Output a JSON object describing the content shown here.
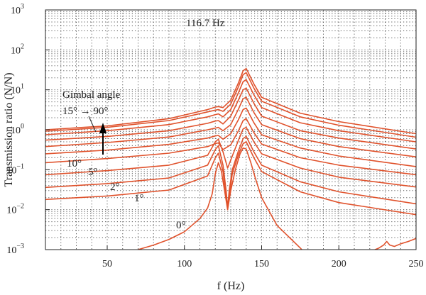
{
  "chart_data": {
    "type": "line",
    "title": "",
    "xlabel": "f (Hz)",
    "ylabel": "Transmission ratio (N/N)",
    "xlim": [
      10,
      250
    ],
    "ylog": true,
    "ylim_exp": [
      -3,
      3
    ],
    "xticks": [
      "50",
      "100",
      "150",
      "200",
      "250"
    ],
    "yticks": [
      {
        "base": "10",
        "exp": "3"
      },
      {
        "base": "10",
        "exp": "2"
      },
      {
        "base": "10",
        "exp": "1"
      },
      {
        "base": "10",
        "exp": "0"
      },
      {
        "base": "10",
        "exp": "−1"
      },
      {
        "base": "10",
        "exp": "−2"
      },
      {
        "base": "10",
        "exp": "−3"
      }
    ],
    "grid": "dotted",
    "line_color": "#e0522c",
    "annotations": {
      "freq_label": "116.7 Hz",
      "gimbal_title": "Gimbal angle",
      "gimbal_range": "15° → 90°",
      "curve_labels": [
        "10°",
        "5°",
        "2°",
        "1°",
        "0°"
      ]
    },
    "series": [
      {
        "x": [
          10,
          50,
          90,
          115,
          120,
          122,
          125,
          130,
          135,
          138,
          140,
          145,
          150,
          175,
          200,
          250
        ],
        "y": [
          1.0,
          1.25,
          1.9,
          3.2,
          3.7,
          3.8,
          3.6,
          5.5,
          15,
          30,
          34,
          14,
          6.5,
          2.6,
          1.6,
          0.8
        ]
      },
      {
        "x": [
          10,
          50,
          90,
          115,
          120,
          122,
          125,
          130,
          135,
          138,
          140,
          145,
          150,
          175,
          200,
          250
        ],
        "y": [
          0.92,
          1.15,
          1.7,
          2.8,
          3.1,
          3.2,
          2.9,
          4.4,
          12,
          24,
          27,
          11,
          5.2,
          2.1,
          1.3,
          0.65
        ]
      },
      {
        "x": [
          10,
          50,
          90,
          115,
          120,
          122,
          125,
          130,
          135,
          138,
          140,
          145,
          150,
          175,
          200,
          250
        ],
        "y": [
          0.75,
          0.95,
          1.35,
          2.1,
          2.4,
          2.5,
          2.1,
          3.2,
          8.5,
          16,
          18,
          7.5,
          3.6,
          1.5,
          0.95,
          0.5
        ]
      },
      {
        "x": [
          10,
          50,
          90,
          115,
          120,
          122,
          125,
          130,
          135,
          138,
          140,
          145,
          150,
          175,
          200,
          250
        ],
        "y": [
          0.55,
          0.68,
          0.95,
          1.45,
          1.65,
          1.7,
          1.4,
          2.2,
          5.6,
          10,
          11,
          4.6,
          2.2,
          0.95,
          0.62,
          0.33
        ]
      },
      {
        "x": [
          10,
          50,
          90,
          115,
          120,
          122,
          125,
          130,
          135,
          138,
          140,
          145,
          150,
          175,
          200,
          250
        ],
        "y": [
          0.38,
          0.48,
          0.66,
          1.0,
          1.1,
          1.15,
          0.95,
          1.35,
          3.3,
          6.0,
          6.5,
          2.7,
          1.35,
          0.6,
          0.38,
          0.21
        ]
      },
      {
        "x": [
          10,
          50,
          90,
          115,
          120,
          122,
          125,
          130,
          135,
          138,
          140,
          145,
          150,
          175,
          200,
          250
        ],
        "y": [
          0.25,
          0.31,
          0.43,
          0.62,
          0.7,
          0.72,
          0.58,
          0.8,
          1.8,
          3.2,
          3.5,
          1.5,
          0.75,
          0.35,
          0.22,
          0.12
        ]
      },
      {
        "x": [
          10,
          50,
          90,
          115,
          120,
          122,
          125,
          130,
          135,
          138,
          140,
          145,
          150,
          175,
          200,
          250
        ],
        "y": [
          0.15,
          0.19,
          0.26,
          0.38,
          0.45,
          0.47,
          0.32,
          0.42,
          0.95,
          1.7,
          1.9,
          0.85,
          0.44,
          0.2,
          0.13,
          0.075
        ]
      },
      {
        "x": [
          10,
          50,
          90,
          115,
          120,
          122,
          125,
          128,
          131,
          135,
          138,
          140,
          145,
          150,
          175,
          200,
          250
        ],
        "y": [
          0.075,
          0.095,
          0.13,
          0.23,
          0.5,
          0.58,
          0.28,
          0.11,
          0.22,
          0.55,
          1.05,
          1.15,
          0.5,
          0.25,
          0.11,
          0.065,
          0.037
        ]
      },
      {
        "x": [
          10,
          50,
          90,
          115,
          120,
          122,
          125,
          127,
          128,
          129,
          131,
          135,
          138,
          140,
          145,
          150,
          175,
          200,
          250
        ],
        "y": [
          0.036,
          0.045,
          0.062,
          0.13,
          0.32,
          0.4,
          0.13,
          0.03,
          0.011,
          0.03,
          0.1,
          0.3,
          0.6,
          0.68,
          0.28,
          0.13,
          0.05,
          0.028,
          0.014
        ]
      },
      {
        "x": [
          10,
          50,
          90,
          115,
          120,
          122,
          125,
          127,
          128,
          129,
          131,
          135,
          138,
          140,
          145,
          150,
          175,
          200,
          250
        ],
        "y": [
          0.018,
          0.022,
          0.031,
          0.07,
          0.2,
          0.26,
          0.09,
          0.02,
          0.011,
          0.02,
          0.08,
          0.24,
          0.45,
          0.5,
          0.2,
          0.09,
          0.028,
          0.015,
          0.0075
        ]
      },
      {
        "x": [
          60,
          70,
          80,
          90,
          100,
          110,
          115,
          118,
          120,
          122,
          124,
          126,
          128,
          130,
          133,
          136,
          138,
          140,
          143,
          146,
          150,
          160,
          175,
          176
        ],
        "y": [
          0.0008,
          0.001,
          0.0013,
          0.0018,
          0.0028,
          0.006,
          0.011,
          0.025,
          0.08,
          0.15,
          0.09,
          0.03,
          0.01,
          0.03,
          0.1,
          0.25,
          0.35,
          0.33,
          0.15,
          0.06,
          0.02,
          0.004,
          0.0011,
          0.001
        ]
      },
      {
        "x": [
          218,
          222,
          226,
          229,
          231,
          233,
          236,
          240,
          245,
          250
        ],
        "y": [
          0.00085,
          0.00095,
          0.0011,
          0.0013,
          0.0016,
          0.0013,
          0.0012,
          0.0014,
          0.0016,
          0.0019
        ]
      }
    ]
  }
}
